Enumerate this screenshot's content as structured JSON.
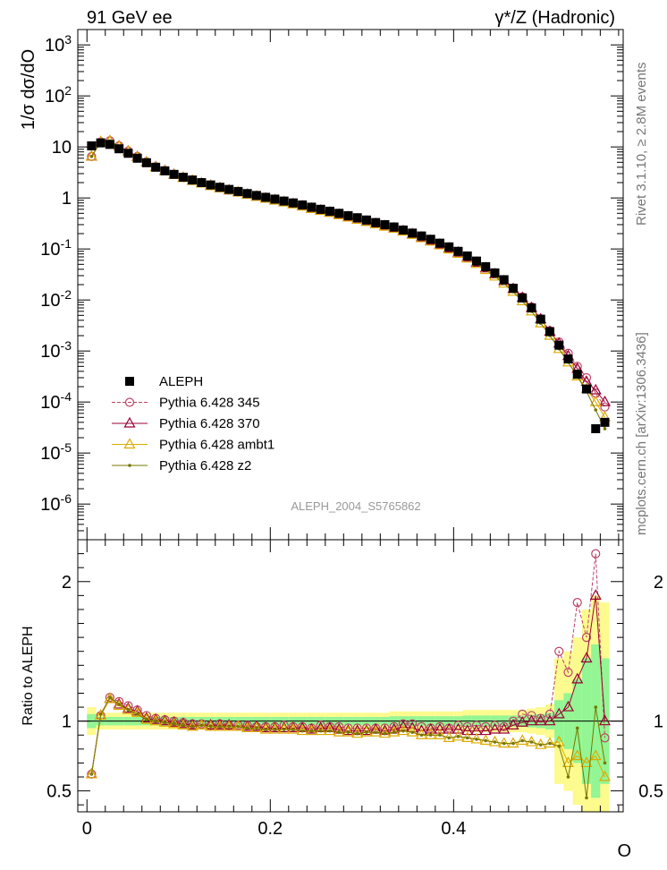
{
  "header": {
    "left": "91 GeV ee",
    "right": "γ*/Z (Hadronic)"
  },
  "side_text": {
    "rivet": "Rivet 3.1.10, ≥ 2.8M events",
    "mcplots": "mcplots.cern.ch [arXiv:1306.3436]"
  },
  "analysis_label": "ALEPH_2004_S5765862",
  "chart_data": [
    {
      "type": "scatter",
      "panel": "main",
      "ylabel": "1/σ dσ/dO",
      "xlabel": "O",
      "yscale": "log",
      "ylim": [
        2e-07,
        2000
      ],
      "xlim": [
        -0.01,
        0.585
      ],
      "xticks": [
        "0",
        "0.2",
        "0.4"
      ],
      "yticks": [
        "10^-6",
        "10^-5",
        "10^-4",
        "10^-3",
        "10^-2",
        "10^-1",
        "1",
        "10",
        "10^2",
        "10^3"
      ],
      "legend_position": "left-bottom",
      "x": [
        0.005,
        0.015,
        0.025,
        0.035,
        0.045,
        0.055,
        0.065,
        0.075,
        0.085,
        0.095,
        0.105,
        0.115,
        0.125,
        0.135,
        0.145,
        0.155,
        0.165,
        0.175,
        0.185,
        0.195,
        0.205,
        0.215,
        0.225,
        0.235,
        0.245,
        0.255,
        0.265,
        0.275,
        0.285,
        0.295,
        0.305,
        0.315,
        0.325,
        0.335,
        0.345,
        0.355,
        0.365,
        0.375,
        0.385,
        0.395,
        0.405,
        0.415,
        0.425,
        0.435,
        0.445,
        0.455,
        0.465,
        0.475,
        0.485,
        0.495,
        0.505,
        0.515,
        0.525,
        0.535,
        0.545,
        0.555,
        0.565
      ],
      "series": [
        {
          "name": "ALEPH",
          "color": "#000000",
          "marker": "square",
          "values": [
            10.5,
            12.0,
            11.2,
            9.2,
            7.5,
            6.0,
            4.9,
            4.0,
            3.4,
            2.9,
            2.55,
            2.25,
            2.0,
            1.8,
            1.62,
            1.47,
            1.34,
            1.22,
            1.12,
            1.03,
            0.95,
            0.87,
            0.8,
            0.73,
            0.66,
            0.6,
            0.55,
            0.5,
            0.45,
            0.41,
            0.37,
            0.33,
            0.3,
            0.27,
            0.235,
            0.205,
            0.18,
            0.155,
            0.13,
            0.11,
            0.09,
            0.073,
            0.058,
            0.045,
            0.034,
            0.025,
            0.017,
            0.011,
            0.007,
            0.0042,
            0.0024,
            0.0013,
            0.0007,
            0.00035,
            0.00018,
            3e-05,
            4e-05
          ]
        },
        {
          "name": "Pythia 6.428 345",
          "color": "#bb4466",
          "marker": "circle",
          "values": [
            6.5,
            12.5,
            13.2,
            10.5,
            8.3,
            6.5,
            5.1,
            4.1,
            3.45,
            2.9,
            2.52,
            2.2,
            1.96,
            1.75,
            1.58,
            1.43,
            1.3,
            1.18,
            1.08,
            0.99,
            0.91,
            0.84,
            0.77,
            0.7,
            0.63,
            0.58,
            0.53,
            0.48,
            0.43,
            0.39,
            0.35,
            0.315,
            0.285,
            0.26,
            0.23,
            0.2,
            0.172,
            0.148,
            0.125,
            0.105,
            0.087,
            0.07,
            0.056,
            0.043,
            0.033,
            0.024,
            0.017,
            0.0115,
            0.0073,
            0.0043,
            0.0025,
            0.0015,
            0.0009,
            0.0005,
            0.0003,
            0.00015,
            8e-05
          ]
        },
        {
          "name": "Pythia 6.428 370",
          "color": "#990033",
          "marker": "triangle",
          "values": [
            6.5,
            12.5,
            13.0,
            10.3,
            8.2,
            6.4,
            5.0,
            4.05,
            3.4,
            2.87,
            2.5,
            2.18,
            1.94,
            1.74,
            1.57,
            1.42,
            1.29,
            1.17,
            1.07,
            0.98,
            0.9,
            0.83,
            0.76,
            0.69,
            0.62,
            0.57,
            0.52,
            0.47,
            0.42,
            0.38,
            0.345,
            0.31,
            0.28,
            0.255,
            0.225,
            0.195,
            0.168,
            0.145,
            0.122,
            0.103,
            0.085,
            0.068,
            0.054,
            0.042,
            0.032,
            0.0235,
            0.0165,
            0.011,
            0.007,
            0.0042,
            0.0024,
            0.0014,
            0.0008,
            0.00045,
            0.00025,
            0.00017,
            0.0001
          ]
        },
        {
          "name": "Pythia 6.428 ambt1",
          "color": "#ddaa00",
          "marker": "triangle",
          "values": [
            6.5,
            12.5,
            13.0,
            10.2,
            8.1,
            6.3,
            4.95,
            4.0,
            3.35,
            2.85,
            2.48,
            2.17,
            1.93,
            1.72,
            1.55,
            1.41,
            1.28,
            1.16,
            1.06,
            0.97,
            0.89,
            0.82,
            0.75,
            0.68,
            0.61,
            0.56,
            0.51,
            0.46,
            0.415,
            0.375,
            0.34,
            0.305,
            0.275,
            0.25,
            0.22,
            0.19,
            0.163,
            0.14,
            0.118,
            0.098,
            0.081,
            0.065,
            0.051,
            0.039,
            0.029,
            0.021,
            0.0145,
            0.0095,
            0.006,
            0.0035,
            0.002,
            0.0011,
            0.0006,
            0.00032,
            0.00018,
            0.0001,
            5e-05
          ]
        },
        {
          "name": "Pythia 6.428 z2",
          "color": "#777700",
          "marker": "dot",
          "values": [
            6.5,
            12.6,
            13.1,
            10.3,
            8.1,
            6.3,
            4.95,
            4.0,
            3.35,
            2.85,
            2.48,
            2.17,
            1.93,
            1.72,
            1.55,
            1.41,
            1.28,
            1.16,
            1.06,
            0.97,
            0.89,
            0.82,
            0.75,
            0.68,
            0.61,
            0.56,
            0.51,
            0.46,
            0.415,
            0.375,
            0.34,
            0.305,
            0.275,
            0.25,
            0.22,
            0.19,
            0.163,
            0.14,
            0.118,
            0.098,
            0.081,
            0.065,
            0.051,
            0.039,
            0.029,
            0.021,
            0.0145,
            0.0095,
            0.006,
            0.0035,
            0.002,
            0.0011,
            0.0006,
            0.00032,
            0.00016,
            7e-05,
            3e-05
          ]
        }
      ]
    },
    {
      "type": "line",
      "panel": "ratio",
      "ylabel": "Ratio to ALEPH",
      "xlabel": "O",
      "ylim": [
        0.35,
        2.3
      ],
      "xlim": [
        -0.01,
        0.585
      ],
      "yticks": [
        "0.5",
        "1",
        "2"
      ],
      "x": [
        0.005,
        0.015,
        0.025,
        0.035,
        0.045,
        0.055,
        0.065,
        0.075,
        0.085,
        0.095,
        0.105,
        0.115,
        0.125,
        0.135,
        0.145,
        0.155,
        0.165,
        0.175,
        0.185,
        0.195,
        0.205,
        0.215,
        0.225,
        0.235,
        0.245,
        0.255,
        0.265,
        0.275,
        0.285,
        0.295,
        0.305,
        0.315,
        0.325,
        0.335,
        0.345,
        0.355,
        0.365,
        0.375,
        0.385,
        0.395,
        0.405,
        0.415,
        0.425,
        0.435,
        0.445,
        0.455,
        0.465,
        0.475,
        0.485,
        0.495,
        0.505,
        0.515,
        0.525,
        0.535,
        0.545,
        0.555,
        0.565
      ],
      "band_inner": [
        0.05,
        0.03,
        0.03,
        0.03,
        0.03,
        0.03,
        0.03,
        0.03,
        0.03,
        0.03,
        0.03,
        0.03,
        0.03,
        0.03,
        0.03,
        0.03,
        0.03,
        0.03,
        0.03,
        0.03,
        0.03,
        0.03,
        0.03,
        0.03,
        0.03,
        0.03,
        0.03,
        0.03,
        0.03,
        0.03,
        0.03,
        0.03,
        0.03,
        0.035,
        0.035,
        0.035,
        0.035,
        0.035,
        0.035,
        0.035,
        0.035,
        0.04,
        0.04,
        0.04,
        0.04,
        0.04,
        0.04,
        0.04,
        0.045,
        0.05,
        0.06,
        0.15,
        0.2,
        0.3,
        0.45,
        0.55,
        0.45
      ],
      "band_outer": [
        0.1,
        0.06,
        0.06,
        0.06,
        0.06,
        0.06,
        0.06,
        0.06,
        0.06,
        0.06,
        0.06,
        0.06,
        0.06,
        0.06,
        0.06,
        0.06,
        0.06,
        0.06,
        0.06,
        0.06,
        0.06,
        0.06,
        0.06,
        0.06,
        0.06,
        0.06,
        0.06,
        0.06,
        0.06,
        0.06,
        0.06,
        0.06,
        0.06,
        0.07,
        0.07,
        0.07,
        0.07,
        0.07,
        0.07,
        0.07,
        0.07,
        0.08,
        0.08,
        0.08,
        0.08,
        0.08,
        0.08,
        0.08,
        0.09,
        0.1,
        0.12,
        0.45,
        0.5,
        0.6,
        0.8,
        0.9,
        0.85
      ],
      "series": [
        {
          "name": "Pythia 6.428 345",
          "color": "#bb4466",
          "marker": "circle",
          "values": [
            0.62,
            1.04,
            1.17,
            1.14,
            1.11,
            1.08,
            1.04,
            1.02,
            1.01,
            1.0,
            0.99,
            0.98,
            0.98,
            0.97,
            0.98,
            0.97,
            0.97,
            0.97,
            0.96,
            0.96,
            0.96,
            0.97,
            0.96,
            0.96,
            0.95,
            0.97,
            0.96,
            0.96,
            0.95,
            0.95,
            0.95,
            0.95,
            0.95,
            0.96,
            0.98,
            0.98,
            0.96,
            0.95,
            0.96,
            0.95,
            0.97,
            0.96,
            0.97,
            0.96,
            0.97,
            0.96,
            1.0,
            1.05,
            1.04,
            1.02,
            1.05,
            1.5,
            1.35,
            1.85,
            1.6,
            2.2,
            0.88
          ]
        },
        {
          "name": "Pythia 6.428 370",
          "color": "#990033",
          "marker": "triangle",
          "values": [
            0.62,
            1.04,
            1.16,
            1.12,
            1.09,
            1.07,
            1.02,
            1.01,
            1.0,
            0.99,
            0.98,
            0.97,
            0.97,
            0.97,
            0.97,
            0.97,
            0.96,
            0.96,
            0.96,
            0.95,
            0.95,
            0.95,
            0.95,
            0.95,
            0.94,
            0.95,
            0.95,
            0.94,
            0.93,
            0.93,
            0.93,
            0.94,
            0.93,
            0.94,
            0.96,
            0.95,
            0.93,
            0.94,
            0.94,
            0.94,
            0.94,
            0.93,
            0.93,
            0.93,
            0.94,
            0.94,
            0.97,
            0.99,
            1.0,
            1.0,
            1.0,
            1.05,
            1.1,
            1.3,
            1.45,
            1.9,
            1.0
          ]
        },
        {
          "name": "Pythia 6.428 ambt1",
          "color": "#ddaa00",
          "marker": "triangle",
          "values": [
            0.62,
            1.04,
            1.16,
            1.11,
            1.08,
            1.06,
            1.01,
            1.0,
            0.99,
            0.98,
            0.97,
            0.96,
            0.97,
            0.96,
            0.96,
            0.96,
            0.96,
            0.95,
            0.95,
            0.94,
            0.94,
            0.94,
            0.94,
            0.93,
            0.93,
            0.93,
            0.93,
            0.92,
            0.92,
            0.91,
            0.92,
            0.92,
            0.91,
            0.92,
            0.93,
            0.92,
            0.9,
            0.9,
            0.9,
            0.88,
            0.89,
            0.88,
            0.87,
            0.86,
            0.85,
            0.84,
            0.84,
            0.86,
            0.85,
            0.83,
            0.84,
            0.85,
            0.7,
            0.75,
            0.7,
            0.75,
            0.6
          ]
        },
        {
          "name": "Pythia 6.428 z2",
          "color": "#777700",
          "marker": "dot",
          "values": [
            0.62,
            1.05,
            1.17,
            1.12,
            1.08,
            1.05,
            1.01,
            1.0,
            0.99,
            0.98,
            0.97,
            0.96,
            0.97,
            0.96,
            0.96,
            0.96,
            0.96,
            0.95,
            0.95,
            0.94,
            0.94,
            0.94,
            0.94,
            0.93,
            0.93,
            0.93,
            0.93,
            0.92,
            0.92,
            0.91,
            0.92,
            0.92,
            0.91,
            0.92,
            0.93,
            0.92,
            0.9,
            0.9,
            0.9,
            0.88,
            0.89,
            0.88,
            0.87,
            0.86,
            0.85,
            0.84,
            0.84,
            0.86,
            0.85,
            0.83,
            0.84,
            0.82,
            0.6,
            0.95,
            0.45,
            1.1,
            0.7
          ]
        }
      ]
    }
  ]
}
